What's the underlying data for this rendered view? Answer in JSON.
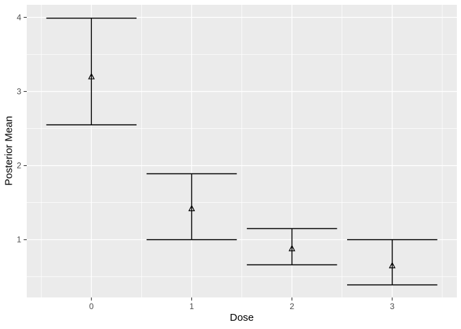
{
  "chart_data": {
    "type": "errorbar",
    "title": "",
    "xlabel": "Dose",
    "ylabel": "Posterior Mean",
    "marker": "open-triangle",
    "points": [
      {
        "dose": 0,
        "mean": 3.2,
        "lower": 2.55,
        "upper": 3.99
      },
      {
        "dose": 1,
        "mean": 1.42,
        "lower": 1.0,
        "upper": 1.89
      },
      {
        "dose": 2,
        "mean": 0.88,
        "lower": 0.66,
        "upper": 1.15
      },
      {
        "dose": 3,
        "mean": 0.65,
        "lower": 0.39,
        "upper": 1.0
      }
    ],
    "errorbar_cap_width": 0.9,
    "x_ticks": [
      0,
      1,
      2,
      3
    ],
    "x_tick_labels": [
      "0",
      "1",
      "2",
      "3"
    ],
    "x_minor": [
      -0.5,
      0.5,
      1.5,
      2.5,
      3.5
    ],
    "xlim": [
      -0.645,
      3.645
    ],
    "y_ticks": [
      1,
      2,
      3,
      4
    ],
    "y_tick_labels": [
      "1",
      "2",
      "3",
      "4"
    ],
    "y_minor": [
      0.5,
      1.5,
      2.5,
      3.5
    ],
    "ylim": [
      0.22,
      4.17
    ],
    "grid": true,
    "legend": "none",
    "colors": {
      "background": "#FFFFFF",
      "panel_bg": "#EBEBEB",
      "grid": "#FFFFFF",
      "line": "#000000",
      "axis_text": "#4D4D4D",
      "axis_title": "#000000",
      "tick_mark": "#333333"
    }
  }
}
